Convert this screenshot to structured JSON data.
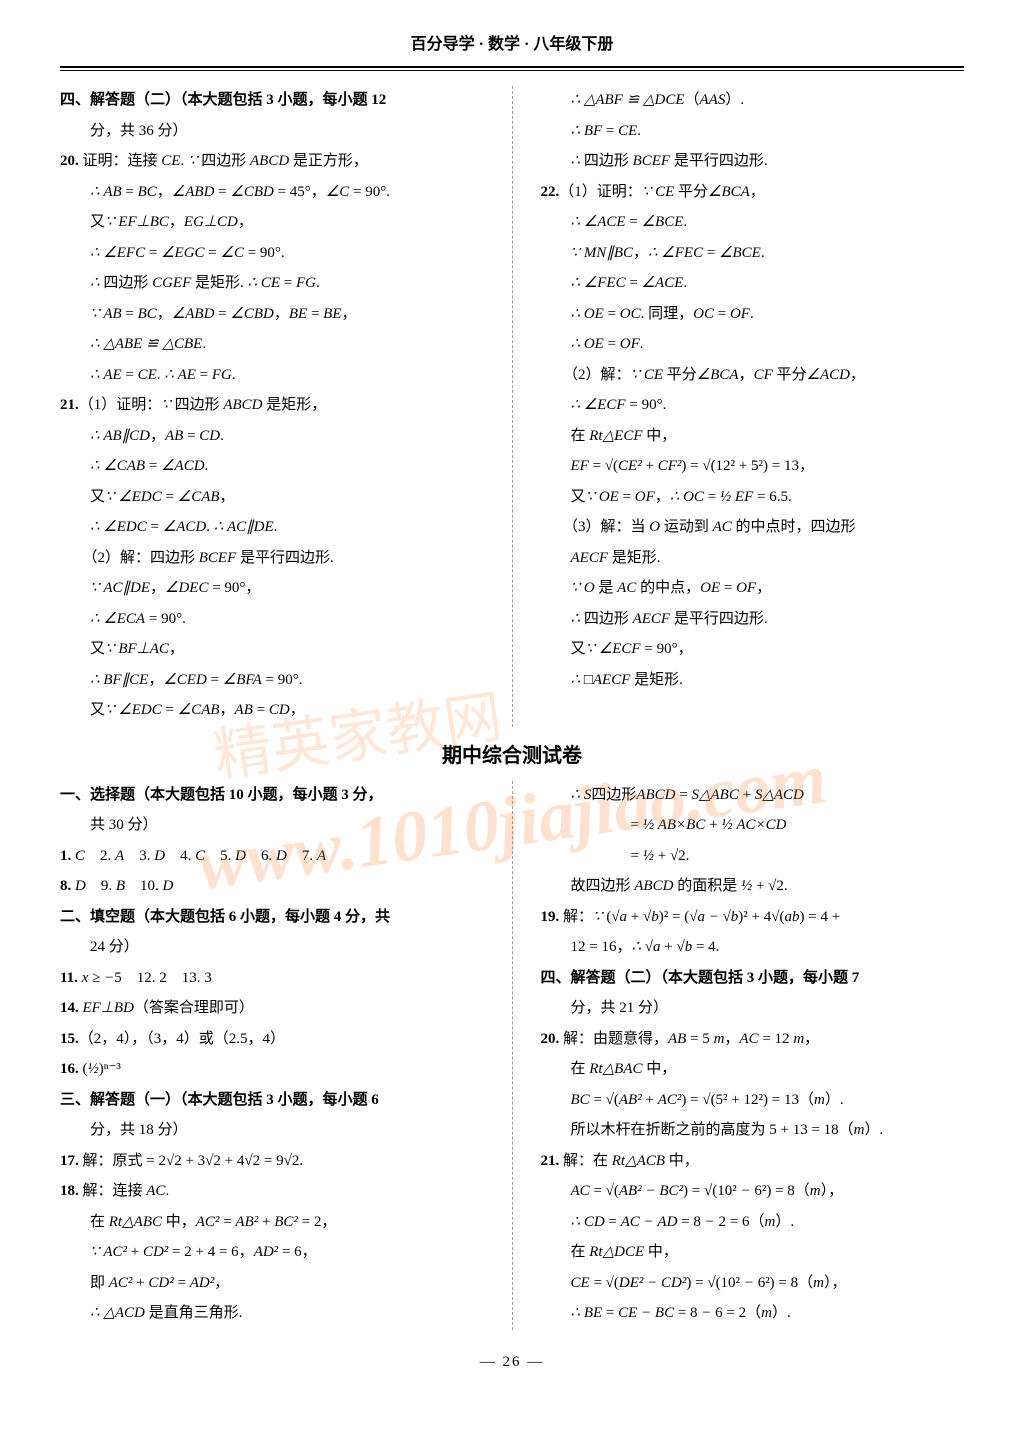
{
  "header": "百分导学 · 数学 · 八年级下册",
  "footer": "— 26 —",
  "watermark_url": "www.1010jiajiao.com",
  "watermark_text": "精英家教网",
  "midtitle": "期中综合测试卷",
  "top": {
    "left": [
      "四、解答题（二）（本大题包括 3 小题，每小题 12",
      "　　分，共 36 分）",
      "20. 证明：连接 CE. ∵ 四边形 ABCD 是正方形，",
      "　　∴ AB = BC，∠ABD = ∠CBD = 45°，∠C = 90°.",
      "　　又∵ EF⊥BC，EG⊥CD，",
      "　　∴ ∠EFC = ∠EGC = ∠C = 90°.",
      "　　∴ 四边形 CGEF 是矩形. ∴ CE = FG.",
      "　　∵ AB = BC，∠ABD = ∠CBD，BE = BE，",
      "　　∴ △ABE ≌ △CBE.",
      "　　∴ AE = CE. ∴ AE = FG.",
      "21.（1）证明：∵ 四边形 ABCD 是矩形，",
      "　　∴ AB∥CD，AB = CD.",
      "　　∴ ∠CAB = ∠ACD.",
      "　　又∵ ∠EDC = ∠CAB，",
      "　　∴ ∠EDC = ∠ACD. ∴ AC∥DE.",
      "　　（2）解：四边形 BCEF 是平行四边形.",
      "　　∵ AC∥DE，∠DEC = 90°，",
      "　　∴ ∠ECA = 90°.",
      "　　又∵ BF⊥AC，",
      "　　∴ BF∥CE，∠CED = ∠BFA = 90°.",
      "　　又∵ ∠EDC = ∠CAB，AB = CD，"
    ],
    "right": [
      "　　∴ △ABF ≌ △DCE（AAS）.",
      "　　∴ BF = CE.",
      "　　∴ 四边形 BCEF 是平行四边形.",
      "22.（1）证明：∵ CE 平分∠BCA，",
      "　　∴ ∠ACE = ∠BCE.",
      "　　∵ MN∥BC，∴ ∠FEC = ∠BCE.",
      "　　∴ ∠FEC = ∠ACE.",
      "　　∴ OE = OC. 同理，OC = OF.",
      "　　∴ OE = OF.",
      "　　（2）解：∵ CE 平分∠BCA，CF 平分∠ACD，",
      "　　∴ ∠ECF = 90°.",
      "　　在 Rt△ECF 中，",
      "　　EF = √(CE² + CF²) = √(12² + 5²) = 13，",
      "　　又∵ OE = OF，∴ OC = ½ EF = 6.5.",
      "　　（3）解：当 O 运动到 AC 的中点时，四边形",
      "　　AECF 是矩形.",
      "　　∵ O 是 AC 的中点，OE = OF，",
      "　　∴ 四边形 AECF 是平行四边形.",
      "　　又∵ ∠ECF = 90°，",
      "　　∴ □AECF 是矩形."
    ]
  },
  "bottom": {
    "left": [
      "一、选择题（本大题包括 10 小题，每小题 3 分，",
      "　　共 30 分）",
      "1. C　2. A　3. D　4. C　5. D　6. D　7. A",
      "8. D　9. B　10. D",
      "二、填空题（本大题包括 6 小题，每小题 4 分，共",
      "　　24 分）",
      "11. x ≥ −5　12. 2　13. 3",
      "14. EF⊥BD（答案合理即可）",
      "15.（2，4），（3，4）或（2.5，4）",
      "16. (½)ⁿ⁻³",
      "三、解答题（一）（本大题包括 3 小题，每小题 6",
      "　　分，共 18 分）",
      "17. 解：原式 = 2√2 + 3√2 + 4√2 = 9√2.",
      "18. 解：连接 AC.",
      "　　在 Rt△ABC 中，AC² = AB² + BC² = 2，",
      "　　∵ AC² + CD² = 2 + 4 = 6，AD² = 6，",
      "　　即 AC² + CD² = AD²，",
      "　　∴ △ACD 是直角三角形."
    ],
    "right": [
      "　　∴ S四边形ABCD = S△ABC + S△ACD",
      "　　　　　　= ½ AB×BC + ½ AC×CD",
      "　　　　　　= ½ + √2.",
      "　　故四边形 ABCD 的面积是 ½ + √2.",
      "19. 解：∵ (√a + √b)² = (√a − √b)² + 4√(ab) = 4 +",
      "　　12 = 16，∴ √a + √b = 4.",
      "四、解答题（二）（本大题包括 3 小题，每小题 7",
      "　　分，共 21 分）",
      "20. 解：由题意得，AB = 5 m，AC = 12 m，",
      "　　在 Rt△BAC 中，",
      "　　BC = √(AB² + AC²) = √(5² + 12²) = 13（m）.",
      "　　所以木杆在折断之前的高度为 5 + 13 = 18（m）.",
      "21. 解：在 Rt△ACB 中，",
      "　　AC = √(AB² − BC²) = √(10² − 6²) = 8（m），",
      "　　∴ CD = AC − AD = 8 − 2 = 6（m）.",
      "　　在 Rt△DCE 中，",
      "　　CE = √(DE² − CD²) = √(10² − 6²) = 8（m），",
      "　　∴ BE = CE − BC = 8 − 6 = 2（m）."
    ]
  }
}
